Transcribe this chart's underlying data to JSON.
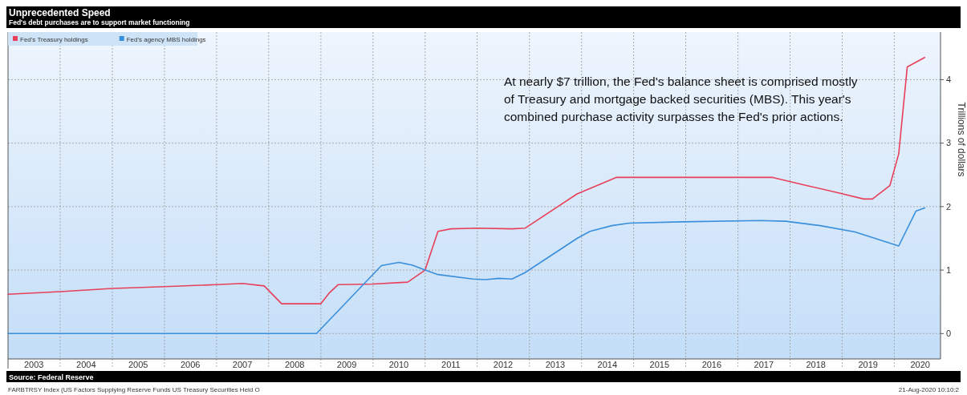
{
  "chart_data": {
    "type": "line",
    "title": "Unprecedented Speed",
    "subtitle": "Fed's debt purchases are to support market functioning",
    "ylabel": "Trillions of dollars",
    "annotations": [
      "At nearly $7 trillion, the Fed's balance sheet is comprised mostly\nof Treasury and mortgage backed securities (MBS).  This year's\ncombined purchase activity surpasses the Fed's prior actions.",
      "Source: Federal Reserve",
      "FARBTRSY Index (US Factors Supplying Reserve Funds US Treasury Securities Held O",
      "21-Aug-2020 10:10:2"
    ],
    "series": [
      {
        "name": "Fed's Treasury holdings",
        "color": "#e8405a",
        "x": [
          "2003-01",
          "2004-01",
          "2005-01",
          "2006-01",
          "2007-01",
          "2007-07",
          "2007-12",
          "2008-04",
          "2009-01",
          "2009-03",
          "2009-05",
          "2010-01",
          "2010-09",
          "2011-01",
          "2011-04",
          "2011-07",
          "2012-01",
          "2012-09",
          "2012-12",
          "2013-12",
          "2014-09",
          "2015-02",
          "2017-09",
          "2018-05",
          "2018-12",
          "2019-06",
          "2019-08",
          "2019-12",
          "2020-02",
          "2020-04",
          "2020-08"
        ],
        "values": [
          0.62,
          0.66,
          0.71,
          0.74,
          0.77,
          0.79,
          0.75,
          0.47,
          0.47,
          0.64,
          0.77,
          0.78,
          0.81,
          1.0,
          1.61,
          1.65,
          1.66,
          1.65,
          1.66,
          2.2,
          2.46,
          2.46,
          2.46,
          2.33,
          2.22,
          2.12,
          2.12,
          2.33,
          2.83,
          4.2,
          4.35
        ]
      },
      {
        "name": "Fed's agency MBS holdings",
        "color": "#3a8fdc",
        "x": [
          "2003-01",
          "2008-12",
          "2010-03",
          "2010-07",
          "2010-10",
          "2011-01",
          "2011-04",
          "2011-12",
          "2012-03",
          "2012-06",
          "2012-09",
          "2012-12",
          "2013-12",
          "2014-03",
          "2014-08",
          "2014-12",
          "2015-12",
          "2017-06",
          "2017-12",
          "2018-08",
          "2019-04",
          "2020-02",
          "2020-06",
          "2020-08"
        ],
        "values": [
          0,
          0,
          1.07,
          1.12,
          1.08,
          1.0,
          0.93,
          0.86,
          0.85,
          0.87,
          0.86,
          0.96,
          1.5,
          1.61,
          1.7,
          1.74,
          1.76,
          1.78,
          1.77,
          1.7,
          1.6,
          1.38,
          1.93,
          1.98
        ]
      }
    ],
    "xlim": [
      "2003-01-01",
      "2020-11-20"
    ],
    "xticks": [
      {
        "value": "2003-07-01",
        "label": "2003"
      },
      {
        "value": "2004-01-01",
        "label": null
      },
      {
        "value": "2004-07-01",
        "label": "2004"
      },
      {
        "value": "2005-01-01",
        "label": null
      },
      {
        "value": "2005-07-01",
        "label": "2005"
      },
      {
        "value": "2006-01-01",
        "label": null
      },
      {
        "value": "2006-07-01",
        "label": "2006"
      },
      {
        "value": "2007-01-01",
        "label": null
      },
      {
        "value": "2007-07-01",
        "label": "2007"
      },
      {
        "value": "2008-01-01",
        "label": null
      },
      {
        "value": "2008-07-01",
        "label": "2008"
      },
      {
        "value": "2009-01-01",
        "label": null
      },
      {
        "value": "2009-07-01",
        "label": "2009"
      },
      {
        "value": "2010-01-01",
        "label": null
      },
      {
        "value": "2010-07-01",
        "label": "2010"
      },
      {
        "value": "2011-01-01",
        "label": null
      },
      {
        "value": "2011-07-01",
        "label": "2011"
      },
      {
        "value": "2012-01-01",
        "label": null
      },
      {
        "value": "2012-07-01",
        "label": "2012"
      },
      {
        "value": "2013-01-01",
        "label": null
      },
      {
        "value": "2013-07-01",
        "label": "2013"
      },
      {
        "value": "2014-01-01",
        "label": null
      },
      {
        "value": "2014-07-01",
        "label": "2014"
      },
      {
        "value": "2015-01-01",
        "label": null
      },
      {
        "value": "2015-07-01",
        "label": "2015"
      },
      {
        "value": "2016-01-01",
        "label": null
      },
      {
        "value": "2016-07-01",
        "label": "2016"
      },
      {
        "value": "2017-01-01",
        "label": null
      },
      {
        "value": "2017-07-01",
        "label": "2017"
      },
      {
        "value": "2018-01-01",
        "label": null
      },
      {
        "value": "2018-07-01",
        "label": "2018"
      },
      {
        "value": "2019-01-01",
        "label": null
      },
      {
        "value": "2019-07-01",
        "label": "2019"
      },
      {
        "value": "2020-01-01",
        "label": null
      },
      {
        "value": "2020-07-01",
        "label": "2020"
      }
    ],
    "ylim": [
      -0.4,
      4.75
    ],
    "yticks": [
      0,
      1,
      2,
      3,
      4
    ],
    "grid": true,
    "legend": "top left",
    "marker": "none",
    "line_style": "solid"
  }
}
